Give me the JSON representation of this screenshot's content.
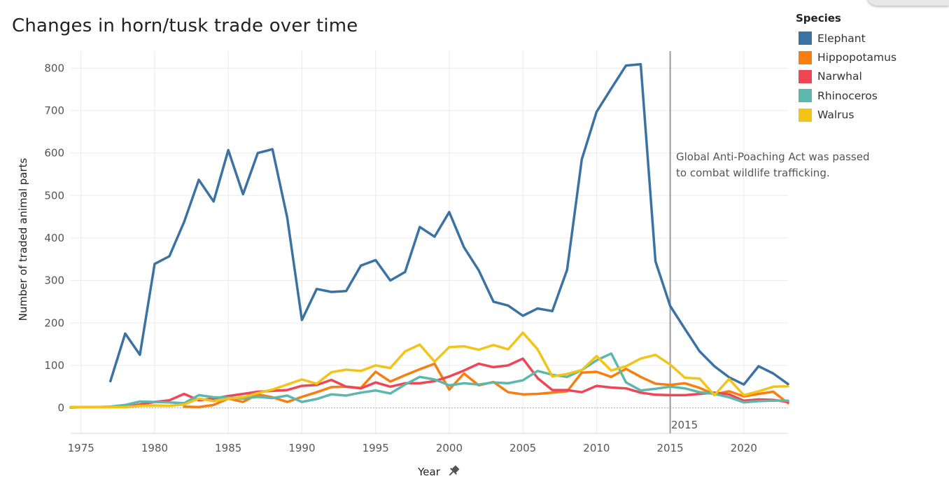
{
  "title": "Changes in horn/tusk trade over time",
  "legend": {
    "title": "Species",
    "items": [
      {
        "label": "Elephant",
        "color": "#3b72a4"
      },
      {
        "label": "Hippopotamus",
        "color": "#f77f12"
      },
      {
        "label": "Narwhal",
        "color": "#ef4656"
      },
      {
        "label": "Rhinoceros",
        "color": "#5cb8af"
      },
      {
        "label": "Walrus",
        "color": "#f2c318"
      }
    ]
  },
  "annotation": {
    "line1": "Global Anti-Poaching Act was passed",
    "line2": "to combat wildlife trafficking.",
    "year_label": "2015"
  },
  "chart_data": {
    "type": "line",
    "title": "Changes in horn/tusk trade over time",
    "xlabel": "Year",
    "ylabel": "Number of traded animal parts",
    "xlim": [
      1974.3,
      2023
    ],
    "ylim": [
      -60,
      840
    ],
    "x_ticks": [
      1975,
      1980,
      1985,
      1990,
      1995,
      2000,
      2005,
      2010,
      2015,
      2020
    ],
    "y_ticks": [
      0,
      100,
      200,
      300,
      400,
      500,
      600,
      700,
      800
    ],
    "grid": true,
    "legend_position": "top-right",
    "reference_line": {
      "x": 2015,
      "label": "2015"
    },
    "series": [
      {
        "name": "Elephant",
        "color": "#3b72a4",
        "x": [
          1977,
          1978,
          1979,
          1980,
          1981,
          1982,
          1983,
          1984,
          1985,
          1986,
          1987,
          1988,
          1989,
          1990,
          1991,
          1992,
          1993,
          1994,
          1995,
          1996,
          1997,
          1998,
          1999,
          2000,
          2001,
          2002,
          2003,
          2004,
          2005,
          2006,
          2007,
          2008,
          2009,
          2010,
          2011,
          2012,
          2013,
          2014,
          2015,
          2016,
          2017,
          2018,
          2019,
          2020,
          2021,
          2022,
          2023
        ],
        "values": [
          63,
          175,
          125,
          339,
          357,
          438,
          537,
          486,
          607,
          503,
          600,
          609,
          448,
          207,
          280,
          273,
          275,
          335,
          348,
          300,
          320,
          426,
          403,
          461,
          378,
          324,
          250,
          241,
          217,
          234,
          228,
          325,
          585,
          697,
          752,
          806,
          809,
          345,
          240,
          186,
          133,
          98,
          72,
          55,
          98,
          81,
          56
        ]
      },
      {
        "name": "Hippopotamus",
        "color": "#f77f12",
        "x": [
          1982,
          1983,
          1984,
          1985,
          1986,
          1987,
          1988,
          1989,
          1990,
          1991,
          1992,
          1993,
          1994,
          1995,
          1996,
          1997,
          1998,
          1999,
          2000,
          2001,
          2002,
          2003,
          2004,
          2005,
          2006,
          2007,
          2008,
          2009,
          2010,
          2011,
          2012,
          2013,
          2014,
          2015,
          2016,
          2017,
          2018,
          2019,
          2020,
          2021,
          2022,
          2023
        ],
        "values": [
          3,
          2,
          7,
          22,
          14,
          32,
          25,
          14,
          26,
          37,
          49,
          50,
          47,
          85,
          62,
          77,
          91,
          104,
          43,
          81,
          53,
          61,
          37,
          32,
          33,
          36,
          39,
          83,
          85,
          73,
          92,
          73,
          57,
          54,
          58,
          47,
          32,
          39,
          27,
          33,
          38,
          11
        ]
      },
      {
        "name": "Narwhal",
        "color": "#ef4656",
        "x": [
          1974.3,
          1975,
          1976,
          1977,
          1978,
          1979,
          1980,
          1981,
          1982,
          1983,
          1984,
          1985,
          1986,
          1987,
          1988,
          1989,
          1990,
          1991,
          1992,
          1993,
          1994,
          1995,
          1996,
          1997,
          1998,
          1999,
          2000,
          2001,
          2002,
          2003,
          2004,
          2005,
          2006,
          2007,
          2008,
          2009,
          2010,
          2011,
          2012,
          2013,
          2014,
          2015,
          2016,
          2017,
          2018,
          2019,
          2020,
          2021,
          2022,
          2023
        ],
        "values": [
          1,
          2,
          2,
          2,
          3,
          8,
          14,
          18,
          33,
          18,
          22,
          28,
          33,
          38,
          40,
          42,
          52,
          54,
          66,
          50,
          46,
          60,
          50,
          58,
          58,
          63,
          74,
          88,
          104,
          96,
          100,
          116,
          70,
          42,
          42,
          37,
          52,
          48,
          46,
          36,
          31,
          30,
          30,
          33,
          36,
          32,
          17,
          20,
          19,
          14
        ]
      },
      {
        "name": "Rhinoceros",
        "color": "#5cb8af",
        "x": [
          1974.3,
          1975,
          1976,
          1977,
          1978,
          1979,
          1980,
          1981,
          1982,
          1983,
          1984,
          1985,
          1986,
          1987,
          1988,
          1989,
          1990,
          1991,
          1992,
          1993,
          1994,
          1995,
          1996,
          1997,
          1998,
          1999,
          2000,
          2001,
          2002,
          2003,
          2004,
          2005,
          2006,
          2007,
          2008,
          2009,
          2010,
          2011,
          2012,
          2013,
          2014,
          2015,
          2016,
          2017,
          2018,
          2019,
          2020,
          2021,
          2022,
          2023
        ],
        "values": [
          2,
          2,
          2,
          3,
          7,
          15,
          14,
          13,
          11,
          30,
          25,
          24,
          22,
          26,
          23,
          29,
          14,
          21,
          32,
          29,
          36,
          41,
          34,
          55,
          73,
          67,
          53,
          58,
          55,
          60,
          58,
          65,
          87,
          78,
          73,
          89,
          112,
          128,
          60,
          41,
          45,
          50,
          46,
          37,
          33,
          25,
          13,
          16,
          17,
          17
        ]
      },
      {
        "name": "Walrus",
        "color": "#f2c318",
        "x": [
          1974.3,
          1975,
          1976,
          1977,
          1978,
          1979,
          1980,
          1981,
          1982,
          1983,
          1984,
          1985,
          1986,
          1987,
          1988,
          1989,
          1990,
          1991,
          1992,
          1993,
          1994,
          1995,
          1996,
          1997,
          1998,
          1999,
          2000,
          2001,
          2002,
          2003,
          2004,
          2005,
          2006,
          2007,
          2008,
          2009,
          2010,
          2011,
          2012,
          2013,
          2014,
          2015,
          2016,
          2017,
          2018,
          2019,
          2020,
          2021,
          2022,
          2023
        ],
        "values": [
          2,
          2,
          2,
          2,
          2,
          5,
          6,
          5,
          8,
          22,
          16,
          22,
          25,
          35,
          43,
          55,
          67,
          57,
          84,
          90,
          87,
          100,
          94,
          133,
          149,
          109,
          143,
          145,
          137,
          148,
          138,
          177,
          138,
          74,
          80,
          89,
          122,
          88,
          98,
          116,
          125,
          102,
          71,
          69,
          30,
          68,
          30,
          39,
          50,
          51
        ]
      }
    ]
  }
}
